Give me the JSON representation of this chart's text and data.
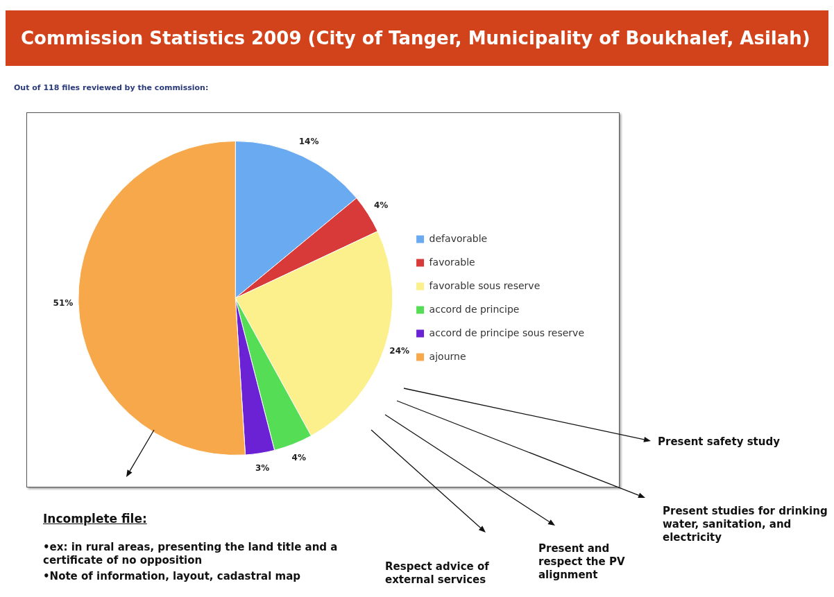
{
  "chart_data": {
    "type": "pie",
    "title": "Commission Statistics 2009 (City of Tanger, Municipality of Boukhalef, Asilah)",
    "subtitle": "Out of 118 files reviewed by the commission:",
    "categories": [
      "defavorable",
      "favorable",
      "favorable sous reserve",
      "accord de principe",
      "accord de principe sous reserve",
      "ajourne"
    ],
    "values": [
      14,
      4,
      24,
      4,
      3,
      51
    ],
    "colors": [
      "#6aaaf0",
      "#d83a3a",
      "#fbf08c",
      "#55dd55",
      "#6a22d4",
      "#f7a84a"
    ],
    "value_labels": [
      "14%",
      "4%",
      "24%",
      "4%",
      "3%",
      "51%"
    ],
    "legend": "right",
    "annotations": [
      "Incomplete file:",
      "•ex: in rural areas, presenting the land title and a certificate of no opposition",
      "•Note of information, layout, cadastral map",
      "Present safety study",
      "Present studies for drinking water, sanitation, and electricity",
      "Present and respect the PV alignment",
      "Respect advice of external services"
    ]
  }
}
